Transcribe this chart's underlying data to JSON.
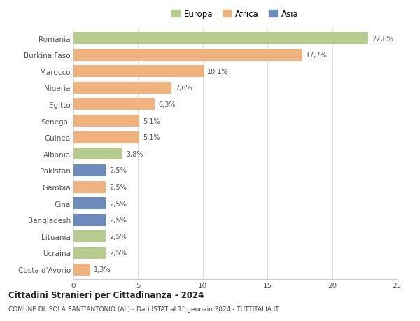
{
  "countries": [
    "Romania",
    "Burkina Faso",
    "Marocco",
    "Nigeria",
    "Egitto",
    "Senegal",
    "Guinea",
    "Albania",
    "Pakistan",
    "Gambia",
    "Cina",
    "Bangladesh",
    "Lituania",
    "Ucraina",
    "Costa d'Avorio"
  ],
  "values": [
    22.8,
    17.7,
    10.1,
    7.6,
    6.3,
    5.1,
    5.1,
    3.8,
    2.5,
    2.5,
    2.5,
    2.5,
    2.5,
    2.5,
    1.3
  ],
  "labels": [
    "22,8%",
    "17,7%",
    "10,1%",
    "7,6%",
    "6,3%",
    "5,1%",
    "5,1%",
    "3,8%",
    "2,5%",
    "2,5%",
    "2,5%",
    "2,5%",
    "2,5%",
    "2,5%",
    "1,3%"
  ],
  "continents": [
    "Europa",
    "Africa",
    "Africa",
    "Africa",
    "Africa",
    "Africa",
    "Africa",
    "Europa",
    "Asia",
    "Africa",
    "Asia",
    "Asia",
    "Europa",
    "Europa",
    "Africa"
  ],
  "colors": {
    "Europa": "#b5cc8e",
    "Africa": "#f0b37e",
    "Asia": "#6b8cba"
  },
  "legend_order": [
    "Europa",
    "Africa",
    "Asia"
  ],
  "title1": "Cittadini Stranieri per Cittadinanza - 2024",
  "title2": "COMUNE DI ISOLA SANT'ANTONIO (AL) - Dati ISTAT al 1° gennaio 2024 - TUTTITALIA.IT",
  "xlim": [
    0,
    25
  ],
  "xticks": [
    0,
    5,
    10,
    15,
    20,
    25
  ],
  "background_color": "#ffffff",
  "grid_color": "#e0e0e0"
}
